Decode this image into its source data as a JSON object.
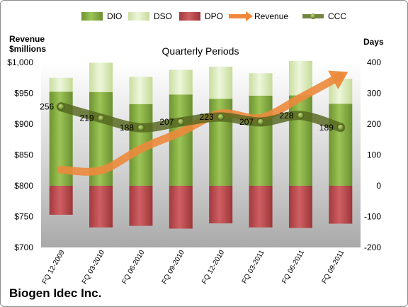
{
  "company": "Biogen Idec Inc.",
  "chart_data": {
    "type": "bar",
    "title": "Quarterly Periods",
    "left_axis_label": [
      "Revenue",
      "$millions"
    ],
    "right_axis_label": "Days",
    "legend": {
      "position": "top",
      "items": [
        {
          "name": "DIO",
          "color": "#7aa43a"
        },
        {
          "name": "DSO",
          "color": "#d7e8b0"
        },
        {
          "name": "DPO",
          "color": "#b8474b"
        },
        {
          "name": "Revenue",
          "color": "#f0883a"
        },
        {
          "name": "CCC",
          "color": "#5b6e22"
        }
      ]
    },
    "categories": [
      "FQ 12-2009",
      "FQ 03-2010",
      "FQ 06-2010",
      "FQ 09-2010",
      "FQ 12-2010",
      "FQ 03-2011",
      "FQ 06-2011",
      "FQ 09-2011"
    ],
    "left_axis": {
      "min": 700,
      "max": 1000,
      "step": 50,
      "tick_labels": [
        "$700",
        "$750",
        "$800",
        "$850",
        "$900",
        "$950",
        "$1,000"
      ]
    },
    "right_axis": {
      "min": -200,
      "max": 400,
      "step": 100,
      "tick_labels": [
        "-200",
        "-100",
        "0",
        "100",
        "200",
        "300",
        "400"
      ]
    },
    "series": [
      {
        "name": "DIO",
        "axis": "right",
        "values": [
          305,
          304,
          265,
          296,
          282,
          292,
          293,
          266
        ]
      },
      {
        "name": "DSO",
        "axis": "right",
        "values": [
          45,
          95,
          88,
          80,
          104,
          73,
          112,
          81
        ]
      },
      {
        "name": "DPO",
        "axis": "right",
        "values": [
          -94,
          -135,
          -130,
          -139,
          -122,
          -135,
          -137,
          -123
        ]
      },
      {
        "name": "Revenue",
        "axis": "left",
        "values": [
          826,
          825,
          860,
          887,
          917,
          910,
          943,
          978
        ]
      },
      {
        "name": "CCC",
        "axis": "right",
        "values": [
          256,
          219,
          188,
          207,
          223,
          207,
          228,
          189
        ]
      }
    ],
    "ccc_labels": [
      "256",
      "219",
      "188",
      "207",
      "223",
      "207",
      "228",
      "189"
    ]
  }
}
